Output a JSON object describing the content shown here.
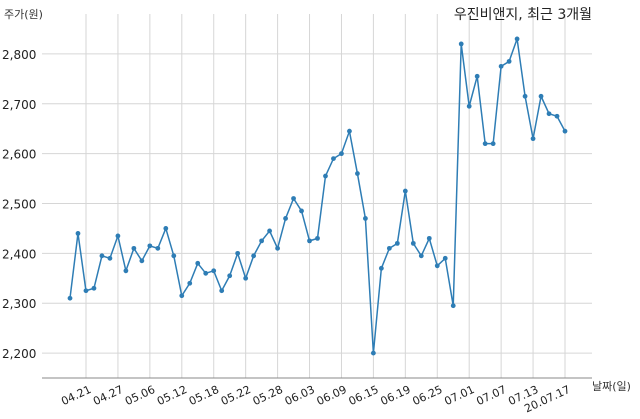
{
  "chart_data": {
    "type": "line",
    "title": "우진비앤지, 최근 3개월",
    "xlabel": "날짜(일)",
    "ylabel": "주가(원)",
    "ylim": [
      2150,
      2880
    ],
    "yticks": [
      2200,
      2300,
      2400,
      2500,
      2600,
      2700,
      2800
    ],
    "ytick_labels": [
      "2,200",
      "2,300",
      "2,400",
      "2,500",
      "2,600",
      "2,700",
      "2,800"
    ],
    "xticks": [
      "04.21",
      "04.27",
      "05.06",
      "05.12",
      "05.18",
      "05.22",
      "05.28",
      "06.03",
      "06.09",
      "06.15",
      "06.19",
      "06.25",
      "07.01",
      "07.07",
      "07.13",
      "20.07.17"
    ],
    "grid": true,
    "color": "#2e7db5",
    "values": [
      2310,
      2440,
      2325,
      2330,
      2395,
      2390,
      2435,
      2365,
      2410,
      2385,
      2415,
      2410,
      2450,
      2395,
      2315,
      2340,
      2380,
      2360,
      2365,
      2325,
      2355,
      2400,
      2350,
      2395,
      2425,
      2445,
      2410,
      2470,
      2510,
      2485,
      2425,
      2430,
      2555,
      2590,
      2600,
      2645,
      2560,
      2470,
      2200,
      2370,
      2410,
      2420,
      2525,
      2420,
      2395,
      2430,
      2375,
      2390,
      2295,
      2820,
      2695,
      2755,
      2620,
      2620,
      2775,
      2785,
      2830,
      2715,
      2630,
      2715,
      2680,
      2675,
      2645
    ]
  }
}
